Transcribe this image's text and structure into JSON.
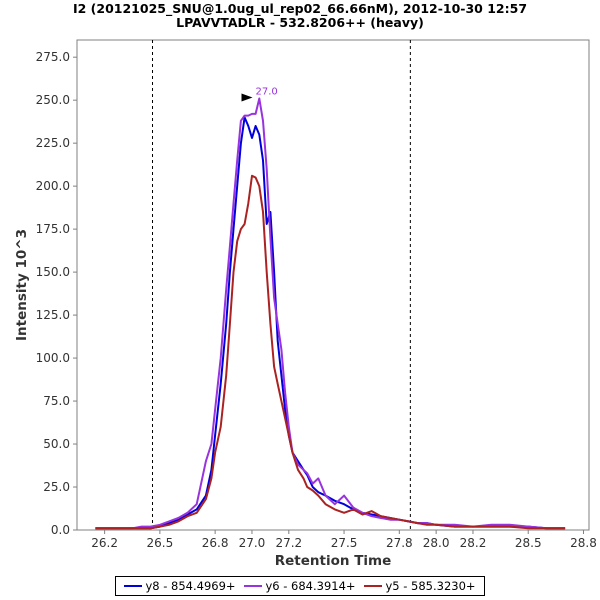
{
  "chart_data": {
    "type": "line",
    "title": "I2 (20121025_SNU@1.0ug_ul_rep02_66.66nM), 2012-10-30 12:57",
    "subtitle": "LPAVVTADLR - 532.8206++ (heavy)",
    "xlabel": "Retention Time",
    "ylabel": "Intensity 10^3",
    "xlim": [
      26.05,
      28.83
    ],
    "ylim": [
      0,
      285
    ],
    "xticks": [
      "26.2",
      "26.5",
      "26.8",
      "27.0",
      "27.2",
      "27.5",
      "27.8",
      "28.0",
      "28.2",
      "28.5",
      "28.8"
    ],
    "xtick_values": [
      26.2,
      26.5,
      26.8,
      27.0,
      27.2,
      27.5,
      27.8,
      28.0,
      28.2,
      28.5,
      28.8
    ],
    "yticks": [
      "0.0",
      "25.0",
      "50.0",
      "75.0",
      "100.0",
      "125.0",
      "150.0",
      "175.0",
      "200.0",
      "225.0",
      "250.0",
      "275.0"
    ],
    "ytick_values": [
      0,
      25,
      50,
      75,
      100,
      125,
      150,
      175,
      200,
      225,
      250,
      275
    ],
    "boundaries": [
      26.46,
      27.86
    ],
    "annotation": {
      "label": "27.0",
      "x": 27.03,
      "y": 251
    },
    "series": [
      {
        "name": "y8 - 854.4969+",
        "color": "#0000dd",
        "x": [
          26.15,
          26.2,
          26.25,
          26.3,
          26.35,
          26.4,
          26.45,
          26.5,
          26.55,
          26.6,
          26.65,
          26.7,
          26.75,
          26.78,
          26.8,
          26.83,
          26.86,
          26.88,
          26.9,
          26.92,
          26.94,
          26.96,
          26.98,
          27.0,
          27.02,
          27.04,
          27.06,
          27.08,
          27.1,
          27.12,
          27.14,
          27.16,
          27.18,
          27.2,
          27.22,
          27.25,
          27.28,
          27.3,
          27.33,
          27.36,
          27.4,
          27.45,
          27.5,
          27.55,
          27.6,
          27.65,
          27.7,
          27.75,
          27.8,
          27.85,
          27.9,
          27.95,
          28.0,
          28.1,
          28.2,
          28.3,
          28.4,
          28.5,
          28.6,
          28.7
        ],
        "y": [
          1,
          1,
          1,
          1,
          1,
          1,
          1,
          2,
          4,
          6,
          9,
          12,
          20,
          35,
          55,
          85,
          120,
          150,
          175,
          200,
          225,
          240,
          235,
          228,
          235,
          230,
          215,
          178,
          185,
          150,
          110,
          90,
          70,
          55,
          45,
          40,
          35,
          32,
          25,
          22,
          20,
          17,
          15,
          12,
          10,
          9,
          8,
          7,
          6,
          5,
          4,
          4,
          3,
          2,
          2,
          2,
          2,
          2,
          1,
          1
        ]
      },
      {
        "name": "y6 - 684.3914+",
        "color": "#9933dd",
        "x": [
          26.15,
          26.2,
          26.25,
          26.3,
          26.35,
          26.4,
          26.45,
          26.5,
          26.55,
          26.6,
          26.65,
          26.7,
          26.75,
          26.78,
          26.8,
          26.83,
          26.86,
          26.88,
          26.9,
          26.92,
          26.94,
          26.96,
          26.98,
          27.0,
          27.02,
          27.04,
          27.06,
          27.08,
          27.1,
          27.12,
          27.14,
          27.16,
          27.18,
          27.2,
          27.22,
          27.25,
          27.28,
          27.3,
          27.33,
          27.36,
          27.4,
          27.45,
          27.5,
          27.55,
          27.6,
          27.65,
          27.7,
          27.75,
          27.8,
          27.85,
          27.9,
          27.95,
          28.0,
          28.1,
          28.2,
          28.3,
          28.4,
          28.5,
          28.6,
          28.7
        ],
        "y": [
          1,
          1,
          1,
          1,
          1,
          2,
          2,
          3,
          5,
          7,
          10,
          15,
          40,
          50,
          70,
          100,
          140,
          165,
          190,
          215,
          238,
          241,
          241,
          242,
          242,
          251,
          238,
          210,
          170,
          135,
          120,
          105,
          80,
          60,
          45,
          38,
          35,
          33,
          27,
          30,
          20,
          15,
          20,
          13,
          10,
          8,
          7,
          6,
          6,
          5,
          4,
          4,
          3,
          3,
          2,
          3,
          3,
          2,
          1,
          1
        ]
      },
      {
        "name": "y5 - 585.3230+",
        "color": "#aa2222",
        "x": [
          26.15,
          26.2,
          26.25,
          26.3,
          26.35,
          26.4,
          26.45,
          26.5,
          26.55,
          26.6,
          26.65,
          26.7,
          26.75,
          26.78,
          26.8,
          26.83,
          26.86,
          26.88,
          26.9,
          26.92,
          26.94,
          26.96,
          26.98,
          27.0,
          27.02,
          27.04,
          27.06,
          27.08,
          27.1,
          27.12,
          27.14,
          27.16,
          27.18,
          27.2,
          27.22,
          27.25,
          27.28,
          27.3,
          27.33,
          27.36,
          27.4,
          27.45,
          27.5,
          27.55,
          27.6,
          27.65,
          27.7,
          27.75,
          27.8,
          27.85,
          27.9,
          27.95,
          28.0,
          28.1,
          28.2,
          28.3,
          28.4,
          28.5,
          28.6,
          28.7
        ],
        "y": [
          1,
          1,
          1,
          1,
          1,
          1,
          1,
          2,
          3,
          5,
          8,
          10,
          18,
          30,
          45,
          60,
          90,
          120,
          150,
          168,
          175,
          178,
          190,
          206,
          205,
          200,
          185,
          150,
          120,
          95,
          85,
          75,
          65,
          55,
          45,
          35,
          30,
          25,
          23,
          20,
          15,
          12,
          10,
          12,
          9,
          11,
          8,
          7,
          6,
          5,
          4,
          3,
          3,
          2,
          2,
          2,
          2,
          1,
          1,
          1
        ]
      }
    ]
  }
}
